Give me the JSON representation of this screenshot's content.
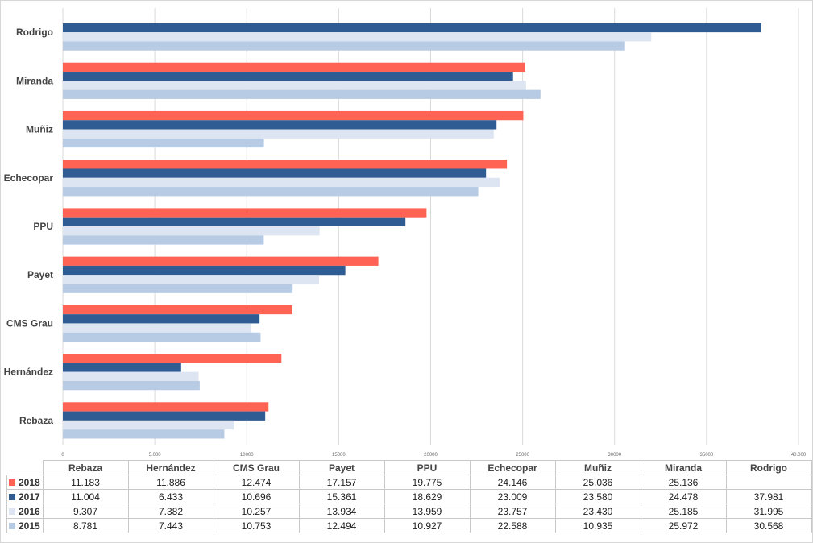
{
  "chart_data": {
    "type": "bar",
    "orientation": "horizontal",
    "categories": [
      "Rebaza",
      "Hernández",
      "CMS Grau",
      "Payet",
      "PPU",
      "Echecopar",
      "Muñiz",
      "Miranda",
      "Rodrigo"
    ],
    "series": [
      {
        "name": "2018",
        "color": "#ff6354",
        "values": [
          11183,
          11886,
          12474,
          17157,
          19775,
          24146,
          25036,
          25136,
          null
        ],
        "labels": [
          "11.183",
          "11.886",
          "12.474",
          "17.157",
          "19.775",
          "24.146",
          "25.036",
          "25.136",
          ""
        ]
      },
      {
        "name": "2017",
        "color": "#2f5d93",
        "values": [
          11004,
          6433,
          10696,
          15361,
          18629,
          23009,
          23580,
          24478,
          37981
        ],
        "labels": [
          "11.004",
          "6.433",
          "10.696",
          "15.361",
          "18.629",
          "23.009",
          "23.580",
          "24.478",
          "37.981"
        ]
      },
      {
        "name": "2016",
        "color": "#dce5f1",
        "values": [
          9307,
          7382,
          10257,
          13934,
          13959,
          23757,
          23430,
          25185,
          31995
        ],
        "labels": [
          "9.307",
          "7.382",
          "10.257",
          "13.934",
          "13.959",
          "23.757",
          "23.430",
          "25.185",
          "31.995"
        ]
      },
      {
        "name": "2015",
        "color": "#b8cbe4",
        "values": [
          8781,
          7443,
          10753,
          12494,
          10927,
          22588,
          10935,
          25972,
          30568
        ],
        "labels": [
          "8.781",
          "7.443",
          "10.753",
          "12.494",
          "10.927",
          "22.588",
          "10.935",
          "25.972",
          "30.568"
        ]
      }
    ],
    "xlim": [
      0,
      40000
    ],
    "xticks": [
      "0",
      "5.000",
      "10000",
      "15000",
      "20000",
      "25000",
      "30000",
      "35000",
      "40.000"
    ],
    "grid": true,
    "legend": "data-table-bottom"
  }
}
